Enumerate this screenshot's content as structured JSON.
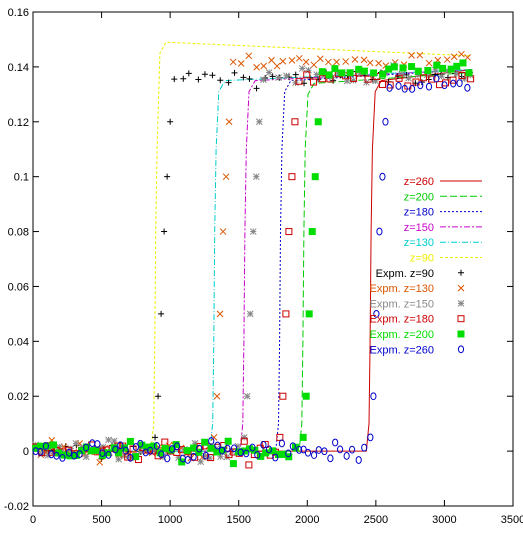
{
  "chart_data": {
    "type": "scatter",
    "title": "",
    "xlabel": "",
    "ylabel": "",
    "xlim": [
      0,
      3500
    ],
    "ylim": [
      -0.02,
      0.16
    ],
    "x_ticks": [
      0,
      500,
      1000,
      1500,
      2000,
      2500,
      3000,
      3500
    ],
    "x_tick_labels": [
      "0",
      "500",
      "1000",
      "1500",
      "2000",
      "2500",
      "3000",
      "3500"
    ],
    "y_ticks": [
      -0.02,
      0,
      0.02,
      0.04,
      0.06,
      0.08,
      0.1,
      0.12,
      0.14,
      0.16
    ],
    "y_tick_labels": [
      "-0.02",
      "0",
      "0.02",
      "0.04",
      "0.06",
      "0.08",
      "0.1",
      "0.12",
      "0.14",
      "0.16"
    ],
    "grid": false,
    "legend_position": "right",
    "series": [
      {
        "name": "z=260",
        "kind": "line",
        "color": "#cc0000",
        "dash": "",
        "front_x": 2450,
        "plateau": 0.135,
        "x_end": 3200
      },
      {
        "name": "z=200",
        "kind": "line",
        "color": "#00cc00",
        "dash": "7,3",
        "front_x": 1960,
        "plateau": 0.134,
        "x_end": 3200
      },
      {
        "name": "z=180",
        "kind": "line",
        "color": "#0000cc",
        "dash": "2,2",
        "front_x": 1790,
        "plateau": 0.135,
        "x_end": 3200
      },
      {
        "name": "z=150",
        "kind": "line",
        "color": "#cc00cc",
        "dash": "6,2,2,2",
        "front_x": 1530,
        "plateau": 0.135,
        "x_end": 3200
      },
      {
        "name": "z=130",
        "kind": "line",
        "color": "#00cccc",
        "dash": "6,2,1,2",
        "front_x": 1310,
        "plateau": 0.135,
        "x_end": 3200
      },
      {
        "name": "z=90",
        "kind": "line",
        "color": "#eeee00",
        "dash": "3,2",
        "front_x": 880,
        "plateau": 0.149,
        "x_end": 3200
      },
      {
        "name": "Expm. z=90",
        "kind": "points",
        "marker": "plus",
        "color": "#000000",
        "front_x": 880,
        "plateau": 0.136
      },
      {
        "name": "Expm. z=130",
        "kind": "points",
        "marker": "cross",
        "color": "#dd5500",
        "front_x": 1310,
        "plateau": 0.142
      },
      {
        "name": "Expm. z=150",
        "kind": "points",
        "marker": "star",
        "color": "#888888",
        "front_x": 1530,
        "plateau": 0.137
      },
      {
        "name": "Expm. z=180",
        "kind": "points",
        "marker": "square",
        "color": "#cc0000",
        "front_x": 1790,
        "plateau": 0.136
      },
      {
        "name": "Expm. z=200",
        "kind": "points",
        "marker": "filled-square",
        "color": "#00dd00",
        "front_x": 1960,
        "plateau": 0.139
      },
      {
        "name": "Expm. z=260",
        "kind": "points",
        "marker": "circle",
        "color": "#0000cc",
        "front_x": 2450,
        "plateau": 0.133
      }
    ]
  }
}
